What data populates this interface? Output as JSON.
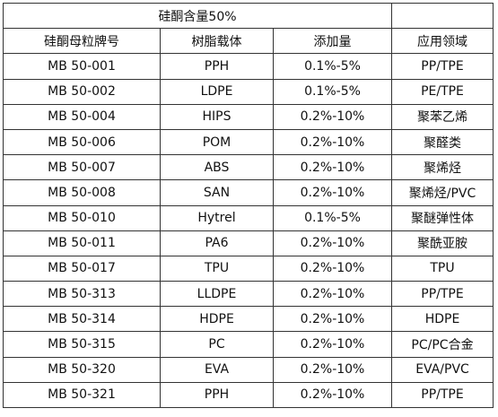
{
  "table": {
    "title": "硅酮含量50%",
    "headers": [
      "硅酮母粒牌号",
      "树脂载体",
      "添加量",
      "应用领域"
    ],
    "rows": [
      [
        "MB 50-001",
        "PPH",
        "0.1%-5%",
        "PP/TPE"
      ],
      [
        "MB 50-002",
        "LDPE",
        "0.1%-5%",
        "PE/TPE"
      ],
      [
        "MB 50-004",
        "HIPS",
        "0.2%-10%",
        "聚苯乙烯"
      ],
      [
        "MB 50-006",
        "POM",
        "0.2%-10%",
        "聚醛类"
      ],
      [
        "MB 50-007",
        "ABS",
        "0.2%-10%",
        "聚烯烃"
      ],
      [
        "MB 50-008",
        "SAN",
        "0.2%-10%",
        "聚烯烃/PVC"
      ],
      [
        "MB 50-010",
        "Hytrel",
        "0.1%-5%",
        "聚醚弹性体"
      ],
      [
        "MB 50-011",
        "PA6",
        "0.2%-10%",
        "聚酰亚胺"
      ],
      [
        "MB 50-017",
        "TPU",
        "0.2%-10%",
        "TPU"
      ],
      [
        "MB 50-313",
        "LLDPE",
        "0.2%-10%",
        "PP/TPE"
      ],
      [
        "MB 50-314",
        "HDPE",
        "0.2%-10%",
        "HDPE"
      ],
      [
        "MB 50-315",
        "PC",
        "0.2%-10%",
        "PC/PC合金"
      ],
      [
        "MB 50-320",
        "EVA",
        "0.2%-10%",
        "EVA/PVC"
      ],
      [
        "MB 50-321",
        "PPH",
        "0.2%-10%",
        "PP/TPE"
      ]
    ]
  }
}
